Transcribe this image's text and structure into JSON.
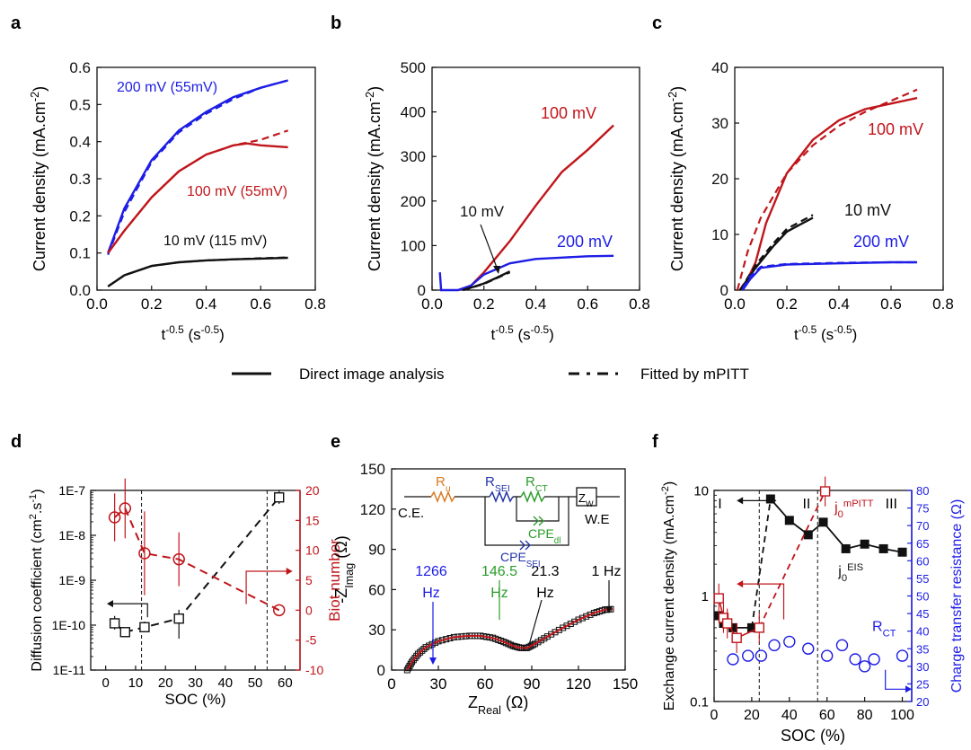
{
  "colors": {
    "black": "#111111",
    "red": "#c0161b",
    "blue": "#1d1de6",
    "green": "#2a9d2a",
    "orange": "#d87a20",
    "darkblue": "#2233aa"
  },
  "legend": {
    "solid_label": "Direct image analysis",
    "dashed_label": "Fitted by mPITT"
  },
  "chart_data": [
    {
      "panel": "a",
      "type": "line",
      "xlabel": "t^-0.5 (s^-0.5)",
      "ylabel": "Current density (mA.cm^-2)",
      "xlim": [
        0,
        0.8
      ],
      "ylim": [
        0,
        0.6
      ],
      "xticks": [
        "0.0",
        "0.2",
        "0.4",
        "0.6",
        "0.8"
      ],
      "yticks": [
        "0.0",
        "0.1",
        "0.2",
        "0.3",
        "0.4",
        "0.5",
        "0.6"
      ],
      "series": [
        {
          "name": "200 mV (55mV)",
          "color": "blue",
          "measured": [
            [
              0.04,
              0.1
            ],
            [
              0.1,
              0.22
            ],
            [
              0.2,
              0.35
            ],
            [
              0.3,
              0.43
            ],
            [
              0.4,
              0.48
            ],
            [
              0.5,
              0.52
            ],
            [
              0.6,
              0.545
            ],
            [
              0.7,
              0.565
            ]
          ],
          "fit": [
            [
              0.04,
              0.095
            ],
            [
              0.1,
              0.21
            ],
            [
              0.2,
              0.345
            ],
            [
              0.3,
              0.425
            ],
            [
              0.4,
              0.475
            ],
            [
              0.5,
              0.515
            ],
            [
              0.6,
              0.545
            ],
            [
              0.7,
              0.565
            ]
          ]
        },
        {
          "name": "100 mV (55mV)",
          "color": "red",
          "measured": [
            [
              0.04,
              0.1
            ],
            [
              0.1,
              0.16
            ],
            [
              0.2,
              0.25
            ],
            [
              0.3,
              0.32
            ],
            [
              0.4,
              0.365
            ],
            [
              0.5,
              0.39
            ],
            [
              0.55,
              0.395
            ],
            [
              0.6,
              0.39
            ],
            [
              0.7,
              0.385
            ]
          ],
          "fit": [
            [
              0.04,
              0.1
            ],
            [
              0.1,
              0.16
            ],
            [
              0.2,
              0.25
            ],
            [
              0.3,
              0.32
            ],
            [
              0.4,
              0.365
            ],
            [
              0.5,
              0.39
            ],
            [
              0.6,
              0.405
            ],
            [
              0.7,
              0.43
            ]
          ]
        },
        {
          "name": "10 mV (115 mV)",
          "color": "black",
          "measured": [
            [
              0.04,
              0.01
            ],
            [
              0.1,
              0.04
            ],
            [
              0.2,
              0.065
            ],
            [
              0.3,
              0.075
            ],
            [
              0.4,
              0.08
            ],
            [
              0.5,
              0.083
            ],
            [
              0.6,
              0.085
            ],
            [
              0.7,
              0.087
            ]
          ],
          "fit": [
            [
              0.04,
              0.01
            ],
            [
              0.1,
              0.04
            ],
            [
              0.2,
              0.065
            ],
            [
              0.3,
              0.075
            ],
            [
              0.4,
              0.08
            ],
            [
              0.5,
              0.083
            ],
            [
              0.6,
              0.086
            ],
            [
              0.7,
              0.088
            ]
          ]
        }
      ]
    },
    {
      "panel": "b",
      "type": "line",
      "xlabel": "t^-0.5 (s^-0.5)",
      "ylabel": "Current density (mA.cm^-2)",
      "xlim": [
        0,
        0.8
      ],
      "ylim": [
        0,
        500
      ],
      "xticks": [
        "0.0",
        "0.2",
        "0.4",
        "0.6",
        "0.8"
      ],
      "yticks": [
        "0",
        "100",
        "200",
        "300",
        "400",
        "500"
      ],
      "annotations": [
        "100 mV",
        "10 mV",
        "200 mV"
      ],
      "series": [
        {
          "name": "100 mV",
          "color": "red",
          "measured": [
            [
              0.1,
              0
            ],
            [
              0.15,
              10
            ],
            [
              0.2,
              40
            ],
            [
              0.3,
              110
            ],
            [
              0.4,
              190
            ],
            [
              0.5,
              265
            ],
            [
              0.6,
              315
            ],
            [
              0.7,
              370
            ]
          ]
        },
        {
          "name": "200 mV",
          "color": "blue",
          "measured": [
            [
              0.03,
              40
            ],
            [
              0.035,
              0
            ],
            [
              0.1,
              0
            ],
            [
              0.15,
              10
            ],
            [
              0.2,
              35
            ],
            [
              0.3,
              60
            ],
            [
              0.4,
              70
            ],
            [
              0.5,
              73
            ],
            [
              0.6,
              76
            ],
            [
              0.7,
              77
            ]
          ]
        },
        {
          "name": "10 mV",
          "color": "black",
          "measured": [
            [
              0.12,
              0
            ],
            [
              0.2,
              15
            ],
            [
              0.25,
              28
            ],
            [
              0.3,
              42
            ]
          ],
          "fit": [
            [
              0.12,
              0
            ],
            [
              0.2,
              14
            ],
            [
              0.25,
              27
            ],
            [
              0.3,
              40
            ]
          ]
        }
      ]
    },
    {
      "panel": "c",
      "type": "line",
      "xlabel": "t^-0.5 (s^-0.5)",
      "ylabel": "Current density (mA.cm^-2)",
      "xlim": [
        0,
        0.8
      ],
      "ylim": [
        0,
        40
      ],
      "xticks": [
        "0.0",
        "0.2",
        "0.4",
        "0.6",
        "0.8"
      ],
      "yticks": [
        "0",
        "10",
        "20",
        "30",
        "40"
      ],
      "annotations": [
        "100 mV",
        "10 mV",
        "200 mV"
      ],
      "series": [
        {
          "name": "100 mV",
          "color": "red",
          "measured": [
            [
              0.03,
              0
            ],
            [
              0.08,
              5
            ],
            [
              0.12,
              12
            ],
            [
              0.2,
              21
            ],
            [
              0.3,
              27
            ],
            [
              0.4,
              30.5
            ],
            [
              0.5,
              32.5
            ],
            [
              0.6,
              33.5
            ],
            [
              0.7,
              34.5
            ]
          ],
          "fit": [
            [
              0.01,
              0
            ],
            [
              0.05,
              7
            ],
            [
              0.1,
              13
            ],
            [
              0.2,
              21
            ],
            [
              0.3,
              26
            ],
            [
              0.4,
              29.5
            ],
            [
              0.5,
              32
            ],
            [
              0.6,
              34
            ],
            [
              0.7,
              36
            ]
          ]
        },
        {
          "name": "10 mV",
          "color": "black",
          "measured": [
            [
              0.02,
              0
            ],
            [
              0.08,
              4
            ],
            [
              0.15,
              8
            ],
            [
              0.2,
              10.5
            ],
            [
              0.3,
              13
            ]
          ],
          "fit": [
            [
              0.02,
              0
            ],
            [
              0.08,
              4.5
            ],
            [
              0.15,
              8.5
            ],
            [
              0.2,
              11
            ],
            [
              0.3,
              13.5
            ]
          ]
        },
        {
          "name": "200 mV",
          "color": "blue",
          "measured": [
            [
              0.03,
              0
            ],
            [
              0.06,
              2
            ],
            [
              0.1,
              4
            ],
            [
              0.2,
              4.6
            ],
            [
              0.4,
              4.8
            ],
            [
              0.6,
              5
            ],
            [
              0.7,
              5
            ]
          ],
          "fit": [
            [
              0.03,
              0.3
            ],
            [
              0.06,
              2.5
            ],
            [
              0.1,
              4.2
            ],
            [
              0.2,
              4.7
            ],
            [
              0.4,
              4.9
            ],
            [
              0.6,
              5
            ],
            [
              0.7,
              5
            ]
          ]
        }
      ]
    },
    {
      "panel": "d",
      "type": "scatter",
      "xlabel": "SOC (%)",
      "ylabel": "Diffusion coefficient (cm^2.s^-1)",
      "y2label": "Biot number",
      "xlim": [
        -5,
        65
      ],
      "ylim_log": [
        1e-11,
        1e-07
      ],
      "y2lim": [
        -10,
        20
      ],
      "xticks": [
        "0",
        "10",
        "20",
        "30",
        "40",
        "50",
        "60"
      ],
      "yticks": [
        "1E-11",
        "1E-10",
        "1E-9",
        "1E-8",
        "1E-7"
      ],
      "y2ticks": [
        "-10",
        "-5",
        "0",
        "5",
        "10",
        "15",
        "20"
      ],
      "vlines": [
        12,
        54
      ],
      "series": [
        {
          "name": "Diffusion coefficient",
          "color": "black",
          "axis": "left",
          "points": [
            [
              3,
              1.1e-10
            ],
            [
              6.5,
              7e-11
            ],
            [
              13,
              9e-11
            ],
            [
              24.5,
              1.4e-10
            ],
            [
              58,
              7e-08
            ]
          ],
          "err_lo": [
            8e-11,
            5.5e-11,
            7e-11,
            5e-11,
            5e-08
          ],
          "err_hi": [
            1.6e-10,
            8.5e-11,
            1.2e-10,
            2.2e-10,
            1e-07
          ]
        },
        {
          "name": "Biot number",
          "color": "red",
          "axis": "right",
          "points": [
            [
              3,
              15.5
            ],
            [
              6.5,
              17
            ],
            [
              13,
              9.5
            ],
            [
              24.5,
              8.5
            ],
            [
              58,
              0
            ]
          ],
          "err": [
            4,
            5,
            7,
            4.5,
            0
          ]
        }
      ]
    },
    {
      "panel": "e",
      "type": "scatter",
      "xlabel": "Z_Real (Ω)",
      "ylabel": "-Z_Imag (Ω)",
      "xlim": [
        0,
        150
      ],
      "ylim": [
        0,
        150
      ],
      "xticks": [
        "0",
        "30",
        "60",
        "90",
        "120",
        "150"
      ],
      "yticks": [
        "0",
        "30",
        "60",
        "90",
        "120",
        "150"
      ],
      "circuit_labels": [
        "R_u",
        "R_SEI",
        "R_CT",
        "Z_W",
        "C.E.",
        "W.E",
        "CPE_dl",
        "CPE_SEI"
      ],
      "annotations": [
        "1266 Hz",
        "146.5 Hz",
        "21.3 Hz",
        "1 Hz"
      ],
      "series": [
        {
          "name": "Nyquist",
          "color": "black",
          "fit_color": "red",
          "points": [
            [
              10,
              0
            ],
            [
              13,
              6
            ],
            [
              17,
              12
            ],
            [
              22,
              17
            ],
            [
              30,
              21.5
            ],
            [
              40,
              24.5
            ],
            [
              50,
              25.5
            ],
            [
              57,
              25.5
            ],
            [
              65,
              24
            ],
            [
              72,
              21
            ],
            [
              78,
              18
            ],
            [
              83,
              16.5
            ],
            [
              87,
              16.5
            ],
            [
              92,
              19.5
            ],
            [
              100,
              25
            ],
            [
              110,
              31.5
            ],
            [
              120,
              37.5
            ],
            [
              130,
              42.5
            ],
            [
              137,
              45
            ],
            [
              142,
              45.5
            ]
          ]
        }
      ]
    },
    {
      "panel": "f",
      "type": "scatter",
      "xlabel": "SOC (%)",
      "ylabel": "Exchange current density (mA.cm^-2)",
      "y2label": "Charge transfer resistance (Ω)",
      "xlim": [
        0,
        105
      ],
      "ylim_log": [
        0.1,
        10
      ],
      "y2lim": [
        20,
        80
      ],
      "xticks": [
        "0",
        "20",
        "40",
        "60",
        "80",
        "100"
      ],
      "yticks": [
        "0.1",
        "1",
        "10"
      ],
      "y2ticks": [
        "20",
        "25",
        "30",
        "35",
        "40",
        "45",
        "50",
        "55",
        "60",
        "65",
        "70",
        "75",
        "80"
      ],
      "vlines": [
        24,
        55
      ],
      "regions": [
        "I",
        "II",
        "III"
      ],
      "series": [
        {
          "name": "j0 EIS",
          "color": "black",
          "axis": "left",
          "points": [
            [
              2.5,
              0.65
            ],
            [
              5,
              0.55
            ],
            [
              10,
              0.5
            ],
            [
              20,
              0.5
            ],
            [
              30,
              8.3
            ],
            [
              40,
              5.2
            ],
            [
              50,
              3.8
            ],
            [
              58,
              5
            ],
            [
              70,
              2.8
            ],
            [
              80,
              3.1
            ],
            [
              90,
              2.8
            ],
            [
              100,
              2.6
            ]
          ]
        },
        {
          "name": "j0 mPITT",
          "color": "red",
          "axis": "left",
          "points": [
            [
              2.5,
              0.95
            ],
            [
              5,
              0.62
            ],
            [
              7,
              0.55
            ],
            [
              12,
              0.4
            ],
            [
              24,
              0.5
            ],
            [
              59,
              9.8
            ]
          ]
        },
        {
          "name": "R_CT",
          "color": "blue",
          "axis": "right",
          "points": [
            [
              10,
              32
            ],
            [
              18,
              33
            ],
            [
              25,
              33
            ],
            [
              32,
              36
            ],
            [
              40,
              37
            ],
            [
              50,
              35
            ],
            [
              60,
              33
            ],
            [
              68,
              36
            ],
            [
              75,
              32
            ],
            [
              80,
              30
            ],
            [
              85,
              32
            ],
            [
              100,
              33
            ]
          ]
        }
      ]
    }
  ],
  "labels": {
    "panel_a": "a",
    "panel_b": "b",
    "panel_c": "c",
    "panel_d": "d",
    "panel_e": "e",
    "panel_f": "f",
    "a_blue": "200 mV (55mV)",
    "a_red": "100 mV (55mV)",
    "a_black": "10 mV (115 mV)",
    "b_red": "100 mV",
    "b_black": "10 mV",
    "b_blue": "200 mV",
    "c_red": "100 mV",
    "c_black": "10 mV",
    "c_blue": "200 mV",
    "e_f1": "1266",
    "e_f2": "146.5",
    "e_f3": "21.3",
    "e_f4": "1 Hz",
    "e_hz": "Hz",
    "e_Ru": "R",
    "e_Ru_sub": "u",
    "e_Rsei": "R",
    "e_Rsei_sub": "SEI",
    "e_Rct": "R",
    "e_Rct_sub": "CT",
    "e_Zw": "Z",
    "e_Zw_sub": "W",
    "e_CE": "C.E.",
    "e_WE": "W.E",
    "e_cpedl": "CPE",
    "e_cpedl_sub": "dl",
    "e_cpesei": "CPE",
    "e_cpesei_sub": "SEI",
    "f_I": "I",
    "f_II": "II",
    "f_III": "III",
    "f_j0": "j",
    "f_j0_sub": "0",
    "f_mpitt": "mPITT",
    "f_eis": "EIS",
    "f_rct": "R",
    "f_rct_sub": "CT",
    "t_label": "t",
    "t_sup": "-0.5",
    "t_unit_open": " (s",
    "t_unit_sup": "-0.5",
    "t_unit_close": ")",
    "cd_label": "Current density (mA.cm",
    "cd_sup": "-2",
    "cd_close": ")",
    "dc_label": "Diffusion coefficient (cm",
    "dc_sup1": "2",
    "dc_mid": ".s",
    "dc_sup2": "-1",
    "dc_close": ")",
    "biot": "Biot number",
    "soc": "SOC (%)",
    "zimag": "-Z",
    "zimag_sub": "Imag",
    "zimag_unit": " (Ω)",
    "zreal": "Z",
    "zreal_sub": "Real",
    "zreal_unit": " (Ω)",
    "ecd_label": "Exchange current density (mA.cm",
    "ecd_sup": "-2",
    "ecd_close": ")",
    "ctr_label": "Charge transfer resistance (Ω)"
  }
}
